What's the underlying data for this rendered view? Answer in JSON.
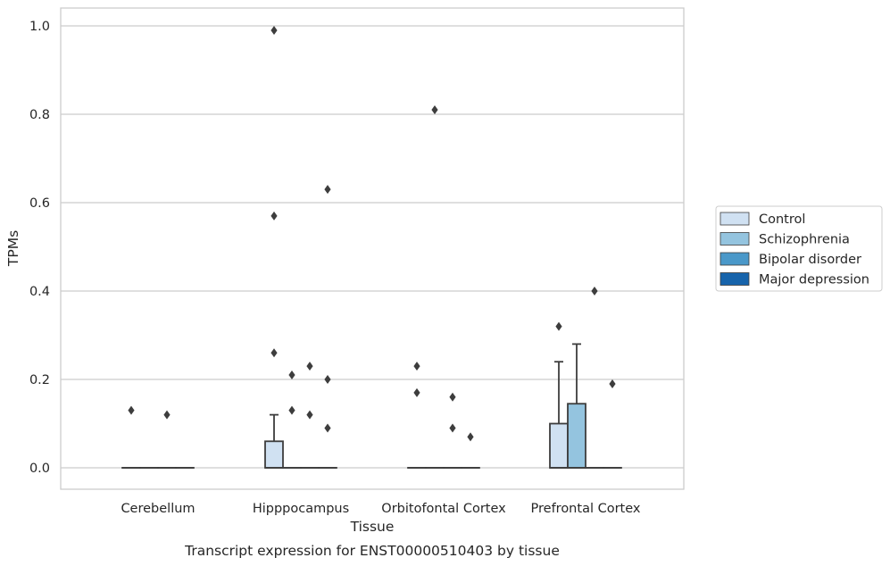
{
  "chart_data": {
    "type": "box",
    "title": "",
    "caption": "Transcript expression for ENST00000510403 by tissue",
    "xlabel": "Tissue",
    "ylabel": "TPMs",
    "ylim": [
      -0.05,
      1.04
    ],
    "yticks": [
      0.0,
      0.2,
      0.4,
      0.6,
      0.8,
      1.0
    ],
    "ytick_labels": [
      "0.0",
      "0.2",
      "0.4",
      "0.6",
      "0.8",
      "1.0"
    ],
    "grid": "y",
    "legend_position": "right",
    "categories": [
      "Cerebellum",
      "Hipppocampus",
      "Orbitofontal Cortex",
      "Prefrontal Cortex"
    ],
    "series": [
      {
        "name": "Control",
        "color": "#d0e1f2",
        "boxes": [
          {
            "q1": 0,
            "median": 0,
            "q3": 0,
            "whisker_low": 0,
            "whisker_high": 0,
            "outliers": [
              0.13
            ]
          },
          {
            "q1": 0,
            "median": 0,
            "q3": 0.06,
            "whisker_low": 0,
            "whisker_high": 0.12,
            "outliers": [
              0.26,
              0.57,
              0.99
            ]
          },
          {
            "q1": 0,
            "median": 0,
            "q3": 0,
            "whisker_low": 0,
            "whisker_high": 0,
            "outliers": [
              0.17,
              0.23
            ]
          },
          {
            "q1": 0,
            "median": 0,
            "q3": 0.1,
            "whisker_low": 0,
            "whisker_high": 0.24,
            "outliers": [
              0.32
            ]
          }
        ]
      },
      {
        "name": "Schizophrenia",
        "color": "#94c4df",
        "boxes": [
          {
            "q1": 0,
            "median": 0,
            "q3": 0,
            "whisker_low": 0,
            "whisker_high": 0,
            "outliers": []
          },
          {
            "q1": 0,
            "median": 0,
            "q3": 0,
            "whisker_low": 0,
            "whisker_high": 0,
            "outliers": [
              0.13,
              0.21
            ]
          },
          {
            "q1": 0,
            "median": 0,
            "q3": 0,
            "whisker_low": 0,
            "whisker_high": 0,
            "outliers": [
              0.81
            ]
          },
          {
            "q1": 0,
            "median": 0,
            "q3": 0.145,
            "whisker_low": 0,
            "whisker_high": 0.28,
            "outliers": []
          }
        ]
      },
      {
        "name": "Bipolar disorder",
        "color": "#4a98c9",
        "boxes": [
          {
            "q1": 0,
            "median": 0,
            "q3": 0,
            "whisker_low": 0,
            "whisker_high": 0,
            "outliers": [
              0.12
            ]
          },
          {
            "q1": 0,
            "median": 0,
            "q3": 0,
            "whisker_low": 0,
            "whisker_high": 0,
            "outliers": [
              0.12,
              0.23
            ]
          },
          {
            "q1": 0,
            "median": 0,
            "q3": 0,
            "whisker_low": 0,
            "whisker_high": 0,
            "outliers": [
              0.09,
              0.16
            ]
          },
          {
            "q1": 0,
            "median": 0,
            "q3": 0,
            "whisker_low": 0,
            "whisker_high": 0,
            "outliers": [
              0.4
            ]
          }
        ]
      },
      {
        "name": "Major depression",
        "color": "#1764ab",
        "boxes": [
          {
            "q1": 0,
            "median": 0,
            "q3": 0,
            "whisker_low": 0,
            "whisker_high": 0,
            "outliers": []
          },
          {
            "q1": 0,
            "median": 0,
            "q3": 0,
            "whisker_low": 0,
            "whisker_high": 0,
            "outliers": [
              0.09,
              0.2,
              0.63
            ]
          },
          {
            "q1": 0,
            "median": 0,
            "q3": 0,
            "whisker_low": 0,
            "whisker_high": 0,
            "outliers": [
              0.07
            ]
          },
          {
            "q1": 0,
            "median": 0,
            "q3": 0,
            "whisker_low": 0,
            "whisker_high": 0,
            "outliers": [
              0.19
            ]
          }
        ]
      }
    ]
  },
  "styles": {
    "grid_color": "#cccccc",
    "spine_color": "#cccccc",
    "edge_color": "#3d3d3d",
    "text_color": "#262626",
    "outlier_marker": "diamond"
  }
}
